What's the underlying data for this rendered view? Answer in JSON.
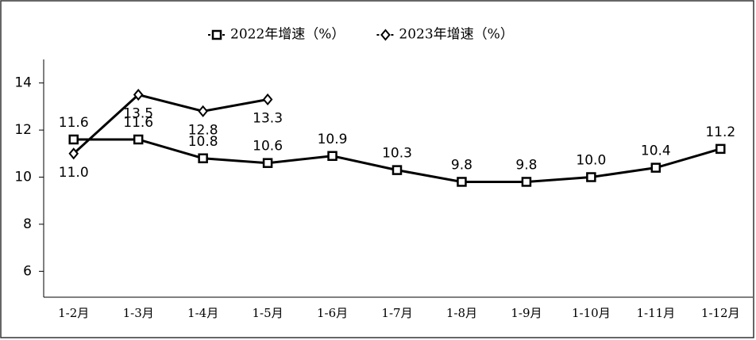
{
  "chart_data": {
    "type": "line",
    "categories": [
      "1-2月",
      "1-3月",
      "1-4月",
      "1-5月",
      "1-6月",
      "1-7月",
      "1-8月",
      "1-9月",
      "1-10月",
      "1-11月",
      "1-12月"
    ],
    "series": [
      {
        "name": "2022年增速（%）",
        "color": "#000000",
        "marker": "square",
        "values": [
          11.6,
          11.6,
          10.8,
          10.6,
          10.9,
          10.3,
          9.8,
          9.8,
          10.0,
          10.4,
          11.2
        ],
        "value_labels": [
          "11.6",
          "11.6",
          "10.8",
          "10.6",
          "10.9",
          "10.3",
          "9.8",
          "9.8",
          "10.0",
          "10.4",
          "11.2"
        ]
      },
      {
        "name": "2023年增速（%）",
        "color": "#000000",
        "marker": "diamond",
        "values": [
          11.0,
          13.5,
          12.8,
          13.3,
          null,
          null,
          null,
          null,
          null,
          null,
          null
        ],
        "value_labels": [
          "11.0",
          "13.5",
          "12.8",
          "13.3",
          null,
          null,
          null,
          null,
          null,
          null,
          null
        ]
      }
    ],
    "ylim": [
      4.9,
      15
    ],
    "yticks": [
      6,
      8,
      10,
      12,
      14
    ],
    "grid": false,
    "legend": "top"
  }
}
